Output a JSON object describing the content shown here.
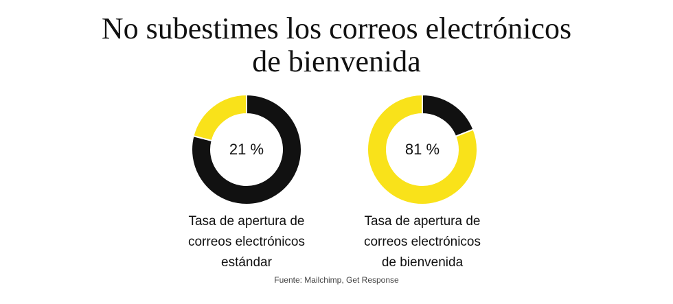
{
  "title": {
    "line1": "No subestimes los correos electrónicos",
    "line2": "de bienvenida"
  },
  "source": "Fuente: Mailchimp, Get Response",
  "colors": {
    "highlight": "#f9e21a",
    "base": "#111111"
  },
  "chart_data": [
    {
      "type": "pie",
      "value_percent": 21,
      "center_label": "21 %",
      "slices": [
        {
          "value": 21,
          "color": "#f9e21a"
        },
        {
          "value": 79,
          "color": "#111111"
        }
      ],
      "caption": [
        "Tasa de apertura de",
        "correos electrónicos",
        "estándar"
      ]
    },
    {
      "type": "pie",
      "value_percent": 81,
      "center_label": "81 %",
      "slices": [
        {
          "value": 81,
          "color": "#f9e21a"
        },
        {
          "value": 19,
          "color": "#111111"
        }
      ],
      "caption": [
        "Tasa de apertura de",
        "correos electrónicos",
        "de bienvenida"
      ]
    }
  ]
}
